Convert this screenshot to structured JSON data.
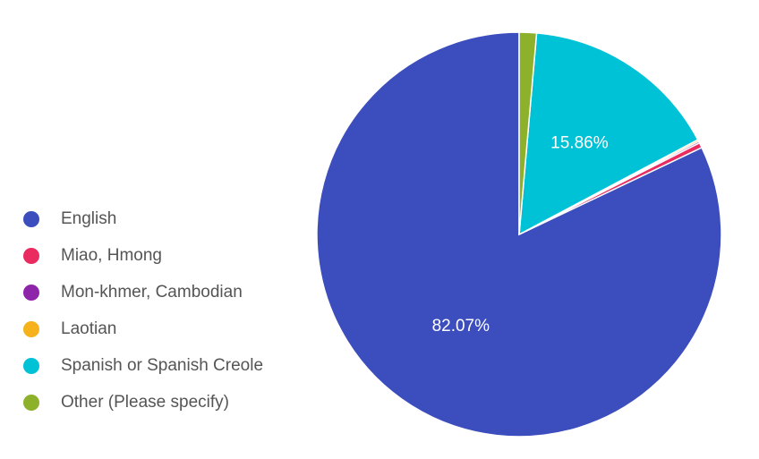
{
  "chart_data": {
    "type": "pie",
    "legend_position": "left",
    "categories": [
      "English",
      "Miao, Hmong",
      "Mon-khmer, Cambodian",
      "Laotian",
      "Spanish or Spanish Creole",
      "Other (Please specify)"
    ],
    "values": [
      82.07,
      0.41,
      0.14,
      0.14,
      15.86,
      1.38
    ],
    "colors": [
      "#3c4dbd",
      "#ea2b5f",
      "#8e24aa",
      "#f5b21c",
      "#00c2d6",
      "#8db12a"
    ],
    "data_labels": [
      "82.07%",
      "",
      "",
      "",
      "15.86%",
      ""
    ]
  }
}
